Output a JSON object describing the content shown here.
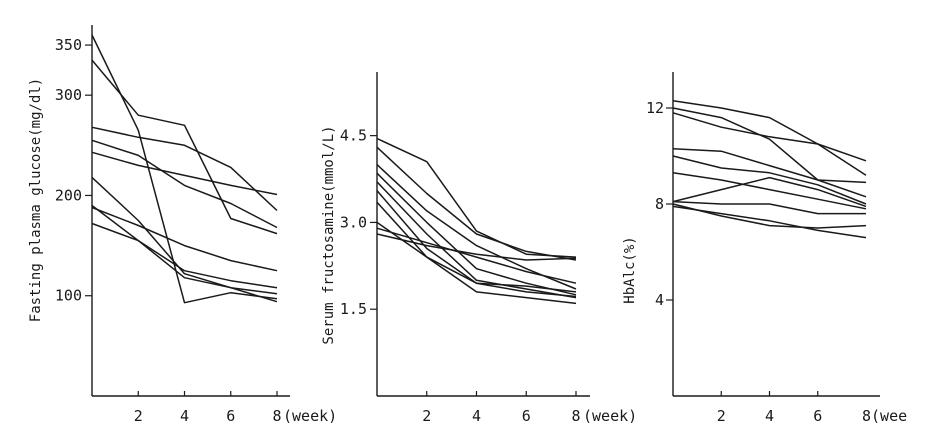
{
  "chart_data": [
    {
      "type": "line",
      "ylabel": "Fasting plasma glucose(mg/dl)",
      "xlabel": "(week)",
      "x_ticks": [
        "2",
        "4",
        "6",
        "8"
      ],
      "y_ticks": [
        "100",
        "200",
        "300",
        "350"
      ],
      "ylim": [
        0,
        370
      ],
      "xlim": [
        0,
        8.5
      ],
      "series": [
        {
          "x": [
            0,
            2,
            4,
            6,
            8
          ],
          "values": [
            360,
            265,
            93,
            103,
            97
          ]
        },
        {
          "x": [
            0,
            2,
            4,
            6,
            8
          ],
          "values": [
            335,
            280,
            270,
            177,
            162
          ]
        },
        {
          "x": [
            0,
            2,
            4,
            6,
            8
          ],
          "values": [
            268,
            258,
            250,
            228,
            185
          ]
        },
        {
          "x": [
            0,
            2,
            4,
            6,
            8
          ],
          "values": [
            255,
            240,
            210,
            192,
            168
          ]
        },
        {
          "x": [
            0,
            2,
            4,
            6,
            8
          ],
          "values": [
            243,
            230,
            220,
            210,
            201
          ]
        },
        {
          "x": [
            0,
            2,
            4,
            6,
            8
          ],
          "values": [
            218,
            175,
            122,
            108,
            102
          ]
        },
        {
          "x": [
            0,
            2,
            4,
            6,
            8
          ],
          "values": [
            190,
            155,
            118,
            108,
            94
          ]
        },
        {
          "x": [
            0,
            2,
            4,
            6,
            8
          ],
          "values": [
            188,
            170,
            150,
            135,
            125
          ]
        },
        {
          "x": [
            0,
            2,
            4,
            6,
            8
          ],
          "values": [
            172,
            155,
            125,
            115,
            108
          ]
        }
      ]
    },
    {
      "type": "line",
      "ylabel": "Serum fructosamine(mmol/L)",
      "xlabel": "(week)",
      "x_ticks": [
        "2",
        "4",
        "6",
        "8"
      ],
      "y_ticks": [
        "1.5",
        "3.0",
        "4.5"
      ],
      "ylim": [
        0,
        5.6
      ],
      "xlim": [
        0,
        8.5
      ],
      "series": [
        {
          "x": [
            0,
            2,
            4,
            6,
            8
          ],
          "values": [
            4.45,
            4.05,
            2.85,
            2.45,
            2.4
          ]
        },
        {
          "x": [
            0,
            2,
            4,
            6,
            8
          ],
          "values": [
            4.3,
            3.5,
            2.8,
            2.5,
            2.35
          ]
        },
        {
          "x": [
            0,
            2,
            4,
            6,
            8
          ],
          "values": [
            4.0,
            3.2,
            2.6,
            2.2,
            1.85
          ]
        },
        {
          "x": [
            0,
            2,
            4,
            6,
            8
          ],
          "values": [
            3.85,
            3.0,
            2.2,
            1.95,
            1.75
          ]
        },
        {
          "x": [
            0,
            2,
            4,
            6,
            8
          ],
          "values": [
            3.7,
            2.8,
            2.0,
            1.85,
            1.7
          ]
        },
        {
          "x": [
            0,
            2,
            4,
            6,
            8
          ],
          "values": [
            3.55,
            2.55,
            1.95,
            1.9,
            1.8
          ]
        },
        {
          "x": [
            0,
            2,
            4,
            6,
            8
          ],
          "values": [
            3.35,
            2.4,
            1.8,
            1.7,
            1.6
          ]
        },
        {
          "x": [
            0,
            2,
            4,
            6,
            8
          ],
          "values": [
            3.0,
            2.4,
            1.95,
            1.8,
            1.72
          ]
        },
        {
          "x": [
            0,
            2,
            4,
            6,
            8
          ],
          "values": [
            2.9,
            2.65,
            2.4,
            2.15,
            1.95
          ]
        },
        {
          "x": [
            0,
            2,
            4,
            6,
            8
          ],
          "values": [
            2.8,
            2.6,
            2.45,
            2.35,
            2.38
          ]
        }
      ]
    },
    {
      "type": "line",
      "ylabel": "HbAlc(%)",
      "xlabel": "8(wee",
      "x_ticks": [
        "2",
        "4",
        "6"
      ],
      "y_ticks": [
        "4",
        "8",
        "12"
      ],
      "ylim": [
        0,
        13.5
      ],
      "xlim": [
        0,
        8.5
      ],
      "series": [
        {
          "x": [
            0,
            2,
            4,
            6,
            8
          ],
          "values": [
            12.3,
            12.0,
            11.6,
            10.5,
            9.2
          ]
        },
        {
          "x": [
            0,
            2,
            4,
            6,
            8
          ],
          "values": [
            12.0,
            11.6,
            10.7,
            9.0,
            8.9
          ]
        },
        {
          "x": [
            0,
            2,
            4,
            6,
            8
          ],
          "values": [
            11.8,
            11.2,
            10.8,
            10.5,
            9.8
          ]
        },
        {
          "x": [
            0,
            2,
            4,
            6,
            8
          ],
          "values": [
            10.3,
            10.2,
            9.6,
            9.0,
            8.3
          ]
        },
        {
          "x": [
            0,
            2,
            4,
            6,
            8
          ],
          "values": [
            10.0,
            9.5,
            9.3,
            8.8,
            8.0
          ]
        },
        {
          "x": [
            0,
            2,
            4,
            6,
            8
          ],
          "values": [
            9.3,
            9.0,
            8.6,
            8.2,
            7.8
          ]
        },
        {
          "x": [
            0,
            2,
            4,
            6,
            8
          ],
          "values": [
            8.1,
            8.6,
            9.1,
            8.6,
            7.9
          ]
        },
        {
          "x": [
            0,
            2,
            4,
            6,
            8
          ],
          "values": [
            8.1,
            8.0,
            8.0,
            7.6,
            7.6
          ]
        },
        {
          "x": [
            0,
            2,
            4,
            6,
            8
          ],
          "values": [
            8.0,
            7.5,
            7.1,
            7.0,
            7.1
          ]
        },
        {
          "x": [
            0,
            2,
            4,
            6,
            8
          ],
          "values": [
            7.9,
            7.6,
            7.3,
            6.9,
            6.6
          ]
        }
      ]
    }
  ]
}
